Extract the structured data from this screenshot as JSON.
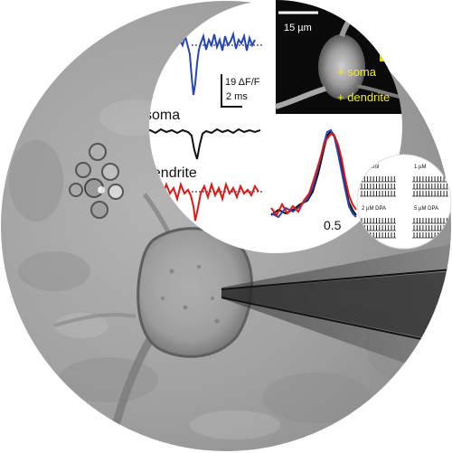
{
  "microscopy": {
    "cell": "neuron-with-patch-pipette"
  },
  "fluorescence_panel": {
    "scale_bar_label": "15 µm",
    "marker_soma_label": "+ soma",
    "marker_dendrite_label": "+ dendrite",
    "label_color": "#f2f200"
  },
  "traces_panel": {
    "scale_amplitude_label": "19 ΔF/F",
    "scale_time_label": "2 ms",
    "label_soma": "soma",
    "label_dendrite": "dendrite",
    "axis_value_label": "0.5",
    "colors": {
      "blue": "#2446b8",
      "black": "#111111",
      "red": "#e01818"
    }
  },
  "spike_panel": {
    "labels": [
      "Control",
      "1 µM",
      "2 µM DPA",
      "5 µM DPA"
    ]
  }
}
